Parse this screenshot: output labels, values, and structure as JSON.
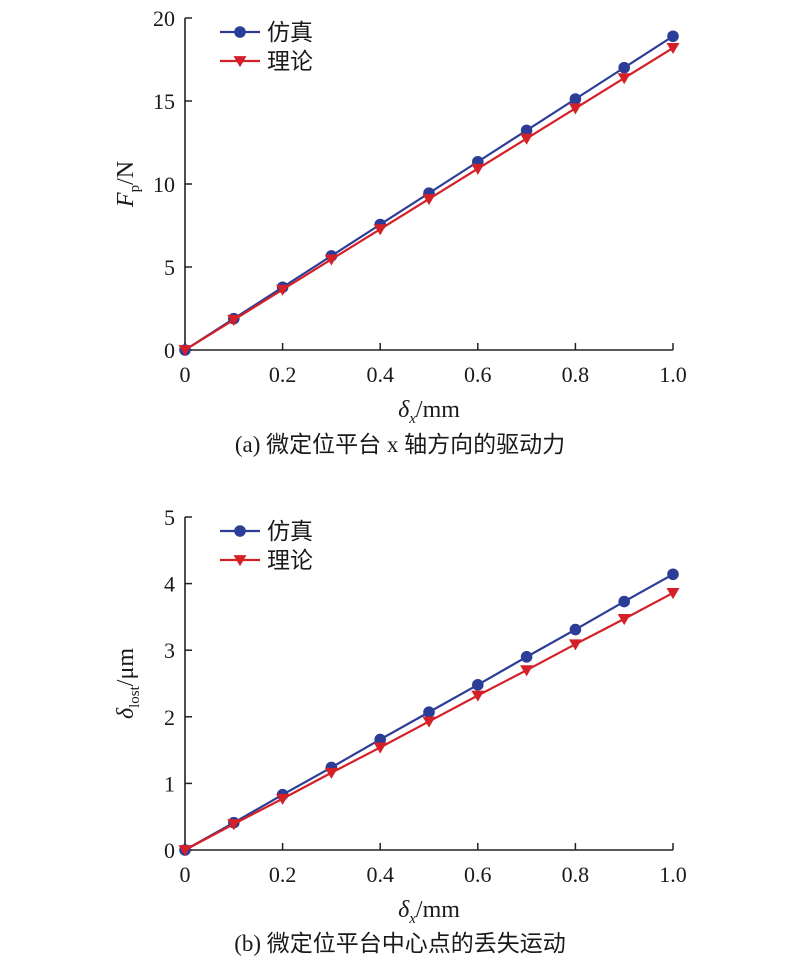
{
  "chart_data": [
    {
      "type": "line",
      "caption": "(a) 微定位平台 x 轴方向的驱动力",
      "xlabel": {
        "main": "δ",
        "sub": "x",
        "unit": "/mm"
      },
      "ylabel": {
        "main": "F",
        "sub": "p",
        "unit": "/N"
      },
      "xlim": [
        0,
        1.0
      ],
      "ylim": [
        0,
        20
      ],
      "xticks": [
        "0",
        "0.2",
        "0.4",
        "0.6",
        "0.8",
        "1.0"
      ],
      "yticks": [
        "0",
        "5",
        "10",
        "15",
        "20"
      ],
      "legend_position": "top-left",
      "grid": false,
      "x": [
        0,
        0.1,
        0.2,
        0.3,
        0.4,
        0.5,
        0.6,
        0.7,
        0.8,
        0.9,
        1.0
      ],
      "series": [
        {
          "name": "仿真",
          "color": "#2b3d96",
          "marker": "circle",
          "values": [
            0,
            1.89,
            3.78,
            5.67,
            7.56,
            9.45,
            11.34,
            13.23,
            15.12,
            17.01,
            18.9
          ]
        },
        {
          "name": "理论",
          "color": "#d42027",
          "marker": "triangle-down",
          "values": [
            0,
            1.82,
            3.64,
            5.46,
            7.28,
            9.1,
            10.92,
            12.74,
            14.56,
            16.38,
            18.2
          ]
        }
      ]
    },
    {
      "type": "line",
      "caption": "(b) 微定位平台中心点的丢失运动",
      "xlabel": {
        "main": "δ",
        "sub": "x",
        "unit": "/mm"
      },
      "ylabel": {
        "main": "δ",
        "sub": "lost",
        "unit": "/μm"
      },
      "xlim": [
        0,
        1.0
      ],
      "ylim": [
        0,
        5
      ],
      "xticks": [
        "0",
        "0.2",
        "0.4",
        "0.6",
        "0.8",
        "1.0"
      ],
      "yticks": [
        "0",
        "1",
        "2",
        "3",
        "4",
        "5"
      ],
      "legend_position": "top-left",
      "grid": false,
      "x": [
        0,
        0.1,
        0.2,
        0.3,
        0.4,
        0.5,
        0.6,
        0.7,
        0.8,
        0.9,
        1.0
      ],
      "series": [
        {
          "name": "仿真",
          "color": "#2b3d96",
          "marker": "circle",
          "values": [
            0,
            0.41,
            0.83,
            1.24,
            1.66,
            2.07,
            2.48,
            2.9,
            3.31,
            3.73,
            4.14
          ]
        },
        {
          "name": "理论",
          "color": "#d42027",
          "marker": "triangle-down",
          "values": [
            0,
            0.39,
            0.77,
            1.16,
            1.54,
            1.93,
            2.32,
            2.7,
            3.09,
            3.47,
            3.86
          ]
        }
      ]
    }
  ]
}
